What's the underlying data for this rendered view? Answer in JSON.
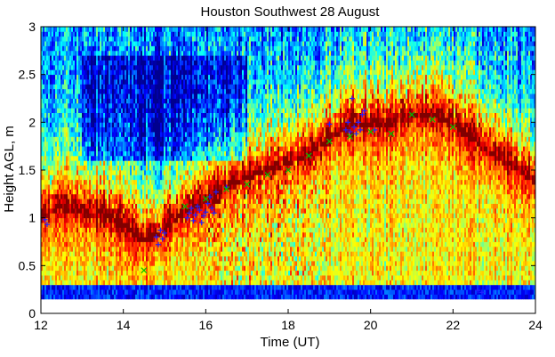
{
  "chart_data": {
    "type": "heatmap",
    "title": "Houston Southwest 28 August",
    "xlabel": "Time (UT)",
    "ylabel": "Height AGL, m",
    "xlim": [
      12,
      24
    ],
    "ylim": [
      0,
      3
    ],
    "xticks": [
      "12",
      "14",
      "16",
      "18",
      "20",
      "22",
      "24"
    ],
    "yticks": [
      "0",
      "0.5",
      "1",
      "1.5",
      "2",
      "2.5",
      "3"
    ],
    "grid": false,
    "colormap": [
      "#00008f",
      "#0000ff",
      "#0080ff",
      "#00ffff",
      "#80ff80",
      "#ffff00",
      "#ff8000",
      "#ff0000",
      "#800000"
    ],
    "data_range_y": [
      0.15,
      3.0
    ],
    "layer_height_estimate": {
      "x": [
        12,
        12.5,
        13,
        13.5,
        14,
        14.3,
        14.6,
        15,
        15.5,
        16,
        16.5,
        17,
        17.5,
        18,
        18.5,
        19,
        19.5,
        20,
        20.5,
        21,
        21.5,
        22,
        22.5,
        23,
        23.5,
        24
      ],
      "y": [
        1.0,
        1.1,
        1.05,
        1.0,
        0.9,
        0.78,
        0.75,
        0.85,
        1.05,
        1.15,
        1.3,
        1.4,
        1.48,
        1.55,
        1.65,
        1.8,
        1.95,
        1.95,
        1.95,
        2.05,
        2.05,
        1.95,
        1.8,
        1.65,
        1.5,
        1.35
      ]
    },
    "series": [
      {
        "marker": "plus",
        "color": "#2020ff",
        "points": [
          [
            12.1,
            0.98
          ],
          [
            12.15,
            0.93
          ],
          [
            14.8,
            0.8
          ],
          [
            14.85,
            0.72
          ],
          [
            14.9,
            0.87
          ],
          [
            14.95,
            0.78
          ],
          [
            15.0,
            0.84
          ],
          [
            15.55,
            1.0
          ],
          [
            15.6,
            1.05
          ],
          [
            15.65,
            1.1
          ],
          [
            15.7,
            0.97
          ],
          [
            15.75,
            1.03
          ],
          [
            15.8,
            1.12
          ],
          [
            15.85,
            1.08
          ],
          [
            15.9,
            0.95
          ],
          [
            15.95,
            1.02
          ],
          [
            16.0,
            1.06
          ],
          [
            16.05,
            1.15
          ],
          [
            16.1,
            1.22
          ],
          [
            16.15,
            1.1
          ],
          [
            16.2,
            1.05
          ],
          [
            16.25,
            1.27
          ],
          [
            16.5,
            1.32
          ],
          [
            19.0,
            1.98
          ],
          [
            19.4,
            1.92
          ],
          [
            19.45,
            2.0
          ],
          [
            19.5,
            1.9
          ],
          [
            19.55,
            2.25
          ],
          [
            19.6,
            1.95
          ],
          [
            19.65,
            1.88
          ],
          [
            19.7,
            2.0
          ],
          [
            19.75,
            1.92
          ],
          [
            19.8,
            2.08
          ],
          [
            19.85,
            2.12
          ],
          [
            20.1,
            1.92
          ],
          [
            22.6,
            0.24
          ],
          [
            22.7,
            0.22
          ]
        ]
      },
      {
        "marker": "cross",
        "color": "#00c000",
        "points": [
          [
            14.5,
            0.45
          ],
          [
            15.5,
            1.12
          ],
          [
            16.0,
            1.2
          ],
          [
            16.5,
            1.3
          ],
          [
            17.0,
            1.35
          ],
          [
            17.5,
            1.45
          ],
          [
            18.0,
            1.5
          ],
          [
            18.5,
            1.65
          ],
          [
            19.0,
            1.8
          ],
          [
            19.5,
            1.85
          ],
          [
            20.0,
            1.9
          ],
          [
            20.5,
            1.88
          ],
          [
            21.0,
            2.08
          ],
          [
            21.5,
            2.03
          ],
          [
            22.0,
            1.95
          ]
        ]
      }
    ]
  }
}
